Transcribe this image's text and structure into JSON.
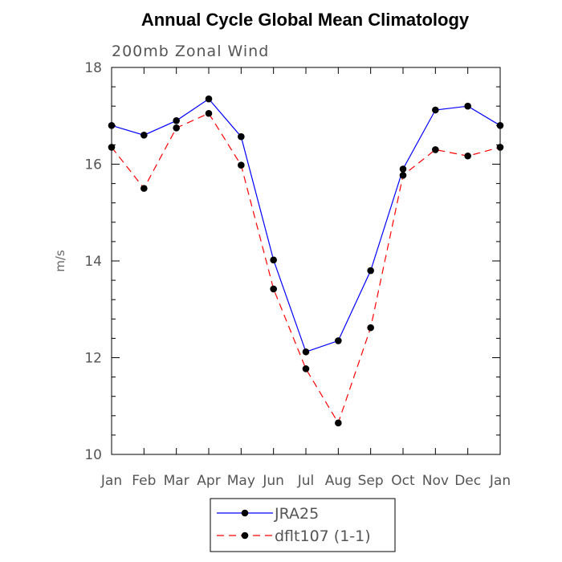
{
  "chart_data": {
    "type": "line",
    "title": "Annual Cycle Global Mean Climatology",
    "subtitle": "200mb Zonal Wind",
    "ylabel": "m/s",
    "xlabel": "",
    "categories": [
      "Jan",
      "Feb",
      "Mar",
      "Apr",
      "May",
      "Jun",
      "Jul",
      "Aug",
      "Sep",
      "Oct",
      "Nov",
      "Dec",
      "Jan"
    ],
    "ylim": [
      10,
      18
    ],
    "yticks": [
      10,
      12,
      14,
      16,
      18
    ],
    "yminor_step": 0.4,
    "series": [
      {
        "name": "JRA25",
        "color": "#0000ff",
        "dash": "solid",
        "marker": "filled-circle",
        "values": [
          16.8,
          16.6,
          16.9,
          17.35,
          16.57,
          14.02,
          12.12,
          12.35,
          13.8,
          15.9,
          17.12,
          17.2,
          16.8
        ]
      },
      {
        "name": "dflt107 (1-1)",
        "color": "#ff0000",
        "dash": "dashed",
        "marker": "filled-circle",
        "values": [
          16.35,
          15.5,
          16.75,
          17.05,
          15.98,
          13.42,
          11.77,
          10.65,
          12.62,
          15.77,
          16.3,
          16.17,
          16.35
        ]
      }
    ],
    "legend_position": "bottom-center",
    "grid": false
  }
}
